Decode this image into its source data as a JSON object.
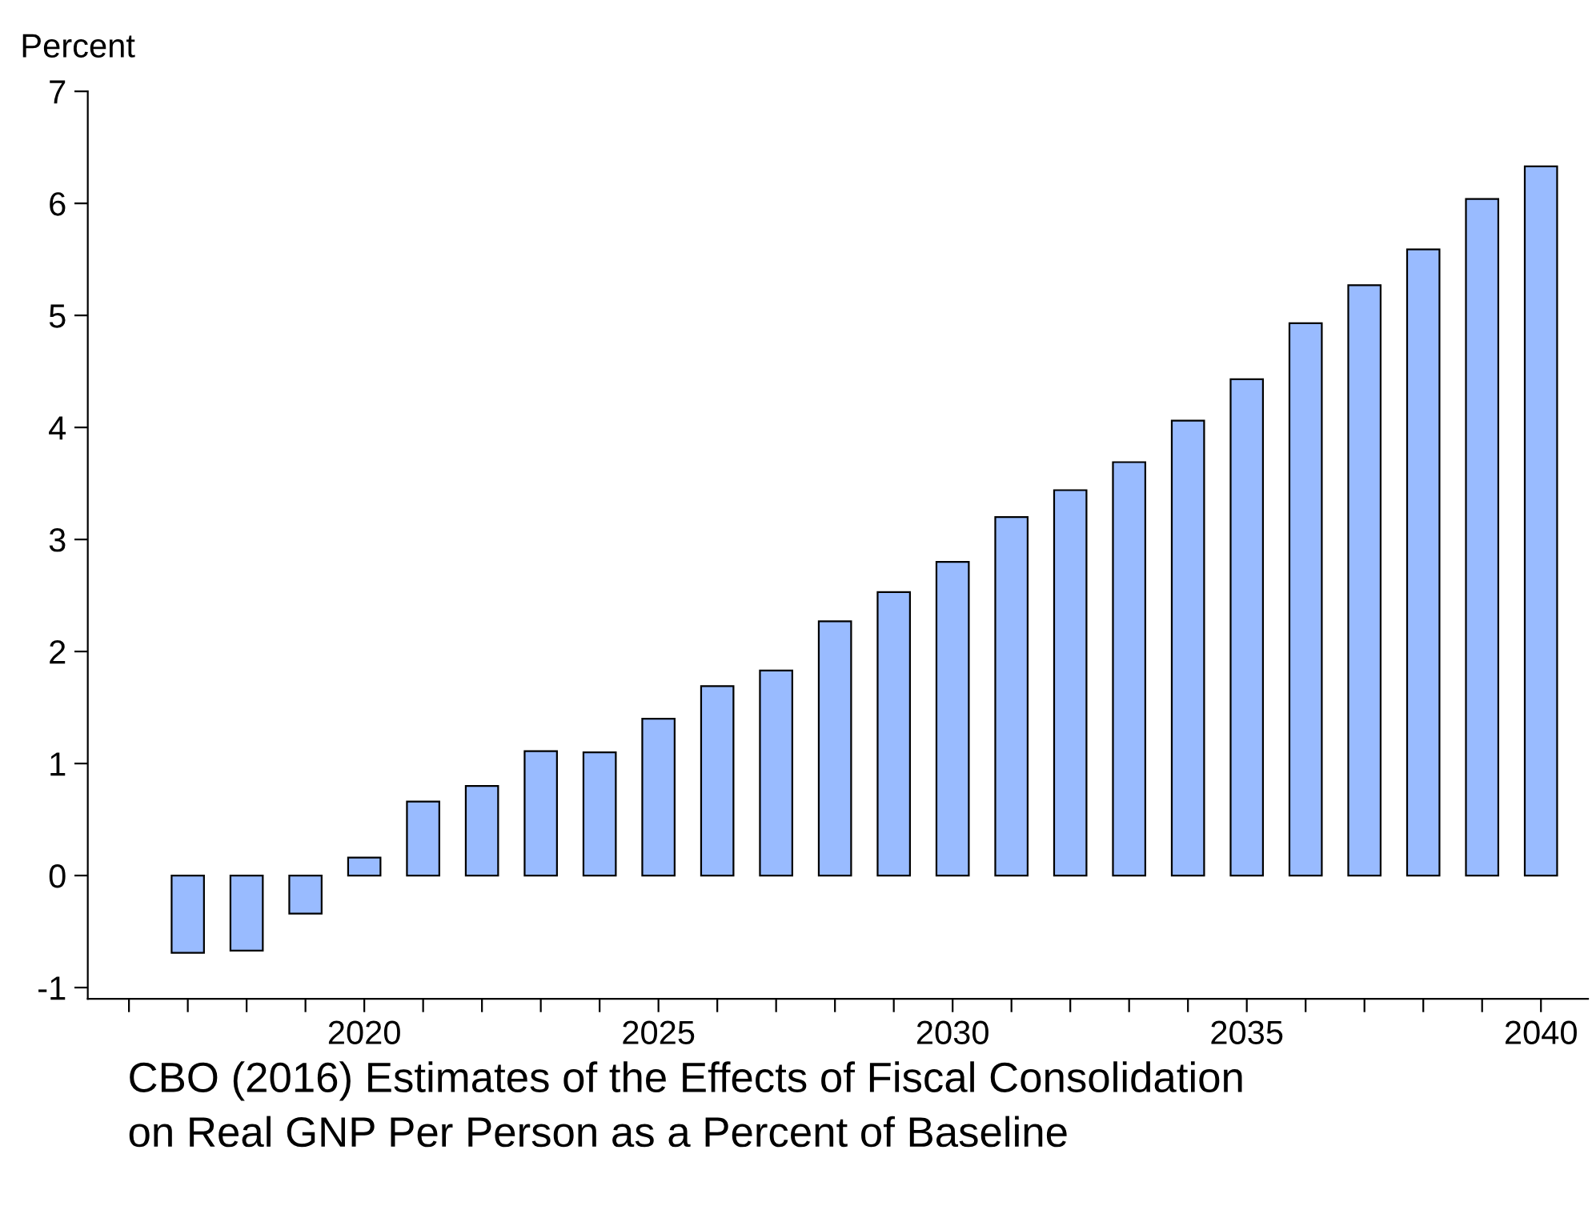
{
  "chart_data": {
    "type": "bar",
    "title": "CBO (2016) Estimates of the Effects of Fiscal Consolidation\non Real GNP Per Person as a Percent of Baseline",
    "ylabel": "Percent",
    "x": [
      2017,
      2018,
      2019,
      2020,
      2021,
      2022,
      2023,
      2024,
      2025,
      2026,
      2027,
      2028,
      2029,
      2030,
      2031,
      2032,
      2033,
      2034,
      2035,
      2036,
      2037,
      2038,
      2039,
      2040
    ],
    "values": [
      -0.69,
      -0.67,
      -0.34,
      0.16,
      0.66,
      0.8,
      1.11,
      1.1,
      1.4,
      1.69,
      1.83,
      2.27,
      2.53,
      2.8,
      3.2,
      3.44,
      3.69,
      4.06,
      4.43,
      4.93,
      5.27,
      5.59,
      6.04,
      6.33
    ],
    "color": "#99bbff",
    "xlim": [
      2015.3,
      2040.8
    ],
    "xticks": [
      {
        "value": 2016,
        "label": null
      },
      {
        "value": 2017,
        "label": null
      },
      {
        "value": 2018,
        "label": null
      },
      {
        "value": 2019,
        "label": null
      },
      2020,
      {
        "value": 2021,
        "label": null
      },
      {
        "value": 2022,
        "label": null
      },
      {
        "value": 2023,
        "label": null
      },
      {
        "value": 2024,
        "label": null
      },
      2025,
      {
        "value": 2026,
        "label": null
      },
      {
        "value": 2027,
        "label": null
      },
      {
        "value": 2028,
        "label": null
      },
      {
        "value": 2029,
        "label": null
      },
      2030,
      {
        "value": 2031,
        "label": null
      },
      {
        "value": 2032,
        "label": null
      },
      {
        "value": 2033,
        "label": null
      },
      {
        "value": 2034,
        "label": null
      },
      2035,
      {
        "value": 2036,
        "label": null
      },
      {
        "value": 2037,
        "label": null
      },
      {
        "value": 2038,
        "label": null
      },
      {
        "value": 2039,
        "label": null
      },
      2040
    ],
    "ylim": [
      -1.1,
      7
    ],
    "yticks": [
      -1,
      0,
      1,
      2,
      3,
      4,
      5,
      6,
      7
    ],
    "grid": false,
    "legend": false
  }
}
